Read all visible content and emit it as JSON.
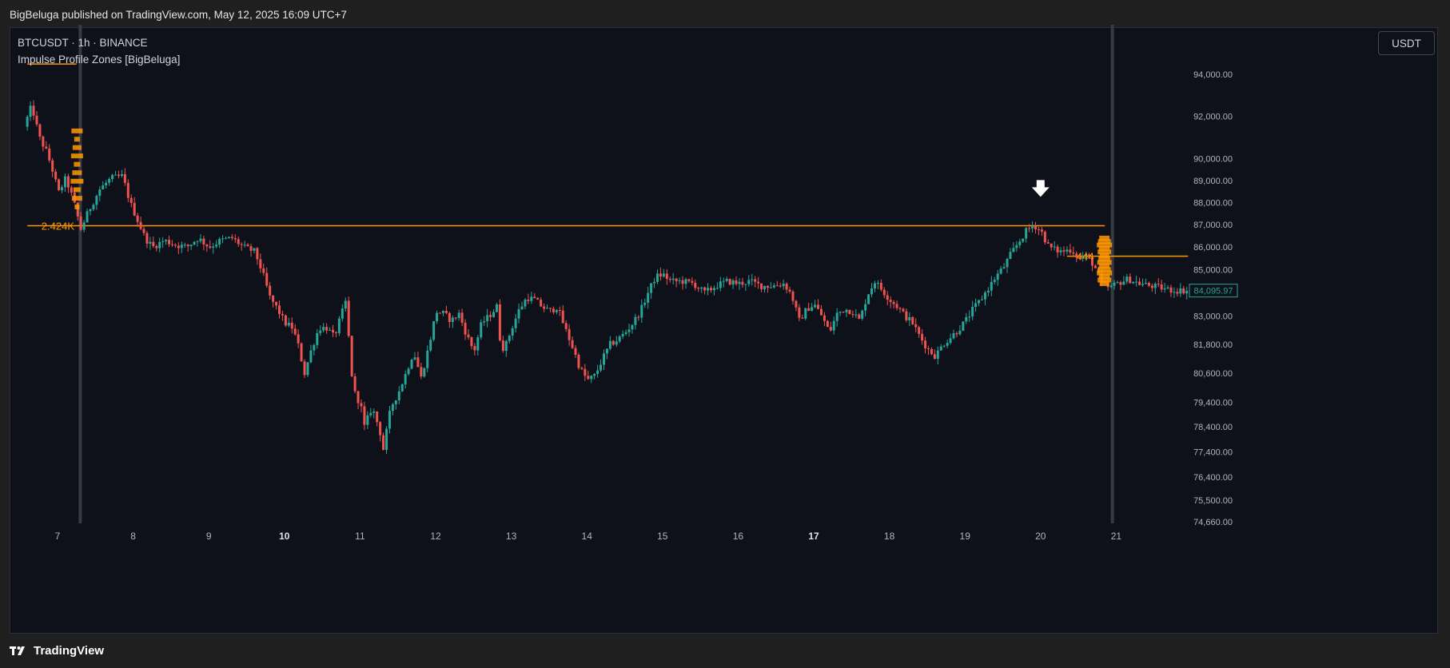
{
  "header": {
    "published_by": "BigBeluga published on TradingView.com, May 12, 2025 16:09 UTC+7"
  },
  "chart_header": {
    "symbol": "BTCUSDT · 1h · BINANCE",
    "indicator": "Impulse Profile Zones [BigBeluga]",
    "currency_button": "USDT"
  },
  "footer": {
    "brand": "TradingView"
  },
  "colors": {
    "background": "#0f111a",
    "up": "#26a69a",
    "down": "#ef5350",
    "zone": "#ff9800",
    "price_label": "#26a69a"
  },
  "chart_data": {
    "type": "candlestick",
    "title": "",
    "symbol": "BTCUSDT",
    "timeframe": "1h",
    "exchange": "BINANCE",
    "ylabel": "",
    "ylim": [
      74300,
      95600
    ],
    "y_scale": "log",
    "y_ticks": [
      "94,000.00",
      "92,000.00",
      "90,000.00",
      "89,000.00",
      "88,000.00",
      "87,000.00",
      "86,000.00",
      "85,000.00",
      "83,000.00",
      "81,800.00",
      "80,600.00",
      "79,400.00",
      "78,400.00",
      "77,400.00",
      "76,400.00",
      "75,500.00",
      "74,660.00"
    ],
    "x_ticks": [
      "7",
      "8",
      "9",
      "10",
      "11",
      "12",
      "13",
      "14",
      "15",
      "16",
      "17",
      "18",
      "19",
      "20",
      "21"
    ],
    "x_ticks_bold": [
      "10",
      "17"
    ],
    "x_range_days": [
      6.6,
      21.95
    ],
    "last_price": 84095.97,
    "last_price_label": "84,095.97",
    "price_path": [
      [
        6.6,
        91500
      ],
      [
        6.7,
        92500
      ],
      [
        6.8,
        91000
      ],
      [
        6.9,
        90300
      ],
      [
        7.0,
        89200
      ],
      [
        7.05,
        88400
      ],
      [
        7.15,
        89100
      ],
      [
        7.25,
        88100
      ],
      [
        7.35,
        86800
      ],
      [
        7.45,
        87600
      ],
      [
        7.6,
        88600
      ],
      [
        7.75,
        89100
      ],
      [
        7.9,
        89200
      ],
      [
        8.0,
        88000
      ],
      [
        8.1,
        87200
      ],
      [
        8.2,
        86400
      ],
      [
        8.3,
        86000
      ],
      [
        8.45,
        86300
      ],
      [
        8.6,
        86100
      ],
      [
        8.75,
        86000
      ],
      [
        8.9,
        86400
      ],
      [
        9.05,
        86000
      ],
      [
        9.2,
        86300
      ],
      [
        9.35,
        86400
      ],
      [
        9.5,
        86000
      ],
      [
        9.65,
        85800
      ],
      [
        9.75,
        84900
      ],
      [
        9.85,
        83800
      ],
      [
        9.95,
        83300
      ],
      [
        10.05,
        82700
      ],
      [
        10.15,
        82500
      ],
      [
        10.25,
        81500
      ],
      [
        10.3,
        80500
      ],
      [
        10.4,
        81600
      ],
      [
        10.5,
        82500
      ],
      [
        10.6,
        82500
      ],
      [
        10.7,
        82100
      ],
      [
        10.8,
        83100
      ],
      [
        10.85,
        83600
      ],
      [
        10.9,
        81800
      ],
      [
        10.95,
        79900
      ],
      [
        11.05,
        79300
      ],
      [
        11.1,
        78400
      ],
      [
        11.2,
        79200
      ],
      [
        11.3,
        78300
      ],
      [
        11.35,
        77500
      ],
      [
        11.45,
        79200
      ],
      [
        11.55,
        79800
      ],
      [
        11.65,
        80600
      ],
      [
        11.75,
        81500
      ],
      [
        11.85,
        80400
      ],
      [
        11.95,
        81700
      ],
      [
        12.05,
        83200
      ],
      [
        12.15,
        83100
      ],
      [
        12.25,
        82800
      ],
      [
        12.35,
        83100
      ],
      [
        12.45,
        82200
      ],
      [
        12.55,
        81500
      ],
      [
        12.65,
        82700
      ],
      [
        12.75,
        83000
      ],
      [
        12.85,
        83400
      ],
      [
        12.9,
        81800
      ],
      [
        12.95,
        81600
      ],
      [
        13.05,
        82500
      ],
      [
        13.15,
        83300
      ],
      [
        13.25,
        83800
      ],
      [
        13.35,
        83700
      ],
      [
        13.45,
        83400
      ],
      [
        13.55,
        83200
      ],
      [
        13.65,
        83400
      ],
      [
        13.75,
        82500
      ],
      [
        13.85,
        81700
      ],
      [
        13.95,
        80800
      ],
      [
        14.05,
        80300
      ],
      [
        14.15,
        80500
      ],
      [
        14.25,
        81200
      ],
      [
        14.35,
        81800
      ],
      [
        14.45,
        82000
      ],
      [
        14.55,
        82300
      ],
      [
        14.65,
        82700
      ],
      [
        14.75,
        83200
      ],
      [
        14.85,
        84000
      ],
      [
        14.95,
        84700
      ],
      [
        15.05,
        84800
      ],
      [
        15.15,
        84500
      ],
      [
        15.3,
        84500
      ],
      [
        15.45,
        84400
      ],
      [
        15.6,
        84000
      ],
      [
        15.75,
        84300
      ],
      [
        15.9,
        84500
      ],
      [
        16.05,
        84400
      ],
      [
        16.2,
        84500
      ],
      [
        16.35,
        84300
      ],
      [
        16.5,
        84300
      ],
      [
        16.65,
        84400
      ],
      [
        16.75,
        83900
      ],
      [
        16.85,
        82800
      ],
      [
        16.95,
        83300
      ],
      [
        17.05,
        83500
      ],
      [
        17.15,
        83000
      ],
      [
        17.25,
        82300
      ],
      [
        17.35,
        83100
      ],
      [
        17.45,
        83300
      ],
      [
        17.55,
        83200
      ],
      [
        17.65,
        82800
      ],
      [
        17.75,
        83900
      ],
      [
        17.85,
        84500
      ],
      [
        17.95,
        84100
      ],
      [
        18.05,
        83700
      ],
      [
        18.15,
        83400
      ],
      [
        18.25,
        83000
      ],
      [
        18.35,
        82700
      ],
      [
        18.45,
        82100
      ],
      [
        18.55,
        81600
      ],
      [
        18.65,
        81300
      ],
      [
        18.75,
        81800
      ],
      [
        18.85,
        82100
      ],
      [
        18.95,
        82400
      ],
      [
        19.05,
        82800
      ],
      [
        19.15,
        83300
      ],
      [
        19.25,
        83700
      ],
      [
        19.35,
        84200
      ],
      [
        19.45,
        84700
      ],
      [
        19.55,
        85100
      ],
      [
        19.65,
        85700
      ],
      [
        19.75,
        86200
      ],
      [
        19.85,
        86700
      ],
      [
        19.95,
        87000
      ],
      [
        20.05,
        86700
      ],
      [
        20.15,
        86000
      ],
      [
        20.3,
        85800
      ],
      [
        20.45,
        85900
      ],
      [
        20.55,
        85500
      ],
      [
        20.65,
        85600
      ],
      [
        20.75,
        85200
      ],
      [
        20.85,
        84400
      ],
      [
        20.95,
        84200
      ],
      [
        21.05,
        84400
      ],
      [
        21.2,
        84600
      ],
      [
        21.35,
        84400
      ],
      [
        21.5,
        84300
      ],
      [
        21.65,
        84200
      ],
      [
        21.8,
        84100
      ],
      [
        21.95,
        84096
      ]
    ],
    "annotations": {
      "zone_labels": [
        "2.424K",
        "444"
      ],
      "zones": [
        {
          "label": "2.424K",
          "price": 86950,
          "from_day": 6.6,
          "to_day": 20.85,
          "profile_from": 87800,
          "profile_to": 91300
        },
        {
          "label": "444",
          "price": 85600,
          "from_day": 20.35,
          "to_day": 21.95,
          "profile_from": 84400,
          "profile_to": 86400
        }
      ],
      "top_line": {
        "price": 94500,
        "from_day": 6.6,
        "to_day": 7.25
      },
      "vertical_markers": [
        7.3,
        20.95
      ],
      "down_arrow": {
        "day": 20.0,
        "price": 88000
      }
    }
  }
}
